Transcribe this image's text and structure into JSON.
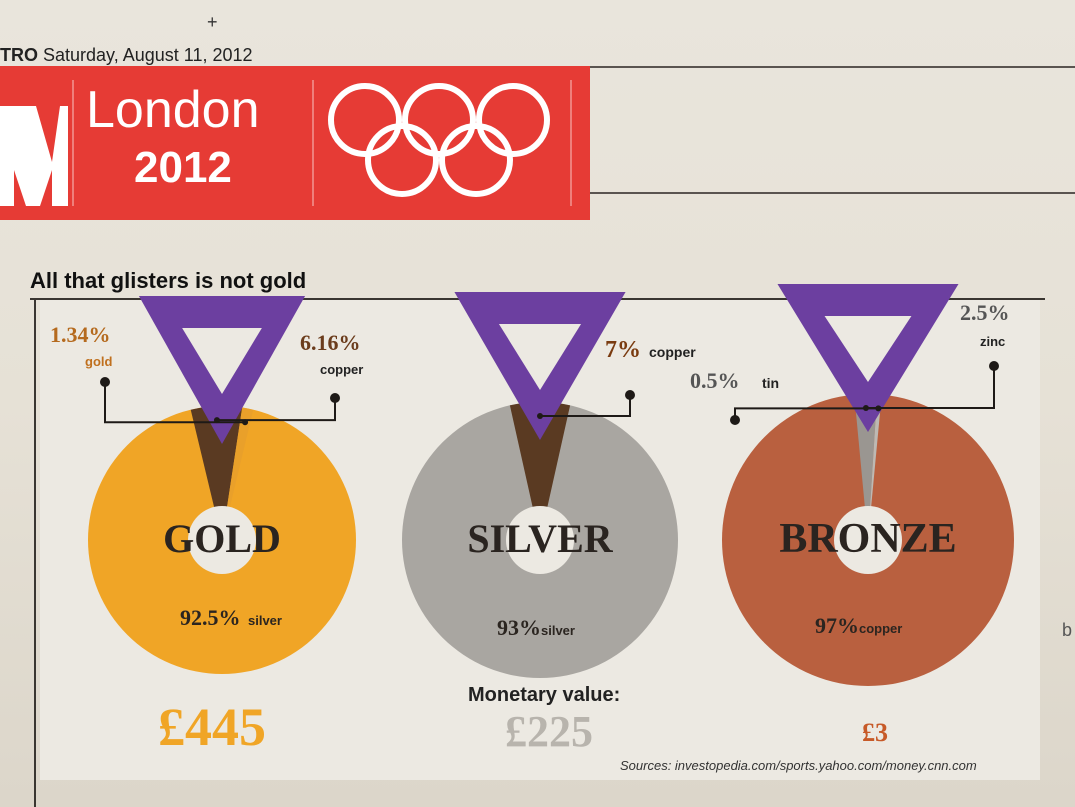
{
  "dateline": {
    "paper": "TRO",
    "date": "Saturday, August 11, 2012"
  },
  "banner": {
    "city": "London",
    "year": "2012",
    "logo_letter": "M",
    "color": "#e63b35"
  },
  "headline": "All that glisters is not gold",
  "monetary_label": "Monetary value:",
  "sources": "Sources: investopedia.com/sports.yahoo.com/money.cnn.com",
  "chart_data": {
    "type": "pie",
    "title": "All that glisters is not gold",
    "ribbon_color": "#6c3fa0",
    "medals": [
      {
        "name": "GOLD",
        "color": "#f0a526",
        "value_label": "£445",
        "value_color": "#f0a526",
        "composition": [
          {
            "material": "silver",
            "percent": 92.5,
            "label_value": "92.5%",
            "label_unit": "silver",
            "color": "#f0a526"
          },
          {
            "material": "copper",
            "percent": 6.16,
            "label_value": "6.16%",
            "label_unit": "copper",
            "color": "#5a3a22"
          },
          {
            "material": "gold",
            "percent": 1.34,
            "label_value": "1.34%",
            "label_unit": "gold",
            "color": "#e9a02a"
          }
        ]
      },
      {
        "name": "SILVER",
        "color": "#a9a6a1",
        "value_label": "£225",
        "value_color": "#b8b4ad",
        "composition": [
          {
            "material": "silver",
            "percent": 93,
            "label_value": "93%",
            "label_unit": "silver",
            "color": "#a9a6a1"
          },
          {
            "material": "copper",
            "percent": 7,
            "label_value": "7%",
            "label_unit": "copper",
            "color": "#5a3a22"
          }
        ]
      },
      {
        "name": "BRONZE",
        "color": "#b9603f",
        "value_label": "£3",
        "value_color": "#c75a28",
        "composition": [
          {
            "material": "copper",
            "percent": 97,
            "label_value": "97%",
            "label_unit": "copper",
            "color": "#b9603f"
          },
          {
            "material": "zinc",
            "percent": 2.5,
            "label_value": "2.5%",
            "label_unit": "zinc",
            "color": "#9a9691"
          },
          {
            "material": "tin",
            "percent": 0.5,
            "label_value": "0.5%",
            "label_unit": "tin",
            "color": "#bdb9b3"
          }
        ]
      }
    ]
  }
}
